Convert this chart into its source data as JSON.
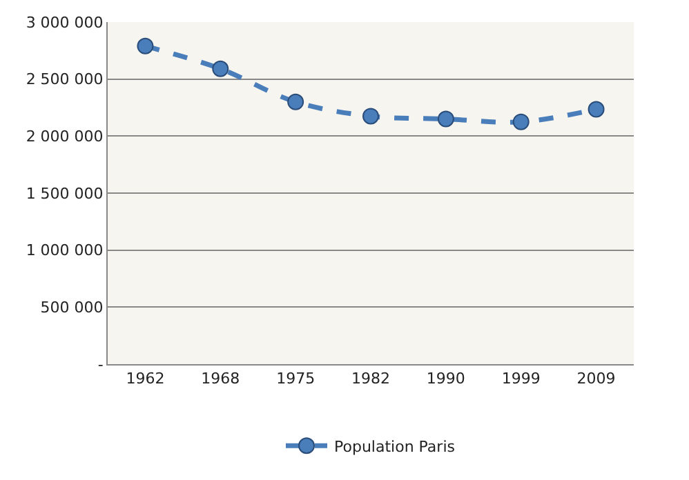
{
  "chart_data": {
    "type": "line",
    "categories": [
      "1962",
      "1968",
      "1975",
      "1982",
      "1990",
      "1999",
      "2009"
    ],
    "series": [
      {
        "name": "Population Paris",
        "color": "#4a7ebb",
        "values": [
          2790000,
          2590000,
          2300000,
          2175000,
          2150000,
          2125000,
          2235000
        ]
      }
    ],
    "ylim": [
      0,
      3000000
    ],
    "yticks": [
      {
        "value": 0,
        "label": "-"
      },
      {
        "value": 500000,
        "label": "500 000"
      },
      {
        "value": 1000000,
        "label": "1 000 000"
      },
      {
        "value": 1500000,
        "label": "1 500 000"
      },
      {
        "value": 2000000,
        "label": "2 000 000"
      },
      {
        "value": 2500000,
        "label": "2 500 000"
      },
      {
        "value": 3000000,
        "label": "3 000 000"
      }
    ],
    "grid": "y",
    "legend": "bottom",
    "marker": "circle",
    "line_style": "dashed"
  }
}
